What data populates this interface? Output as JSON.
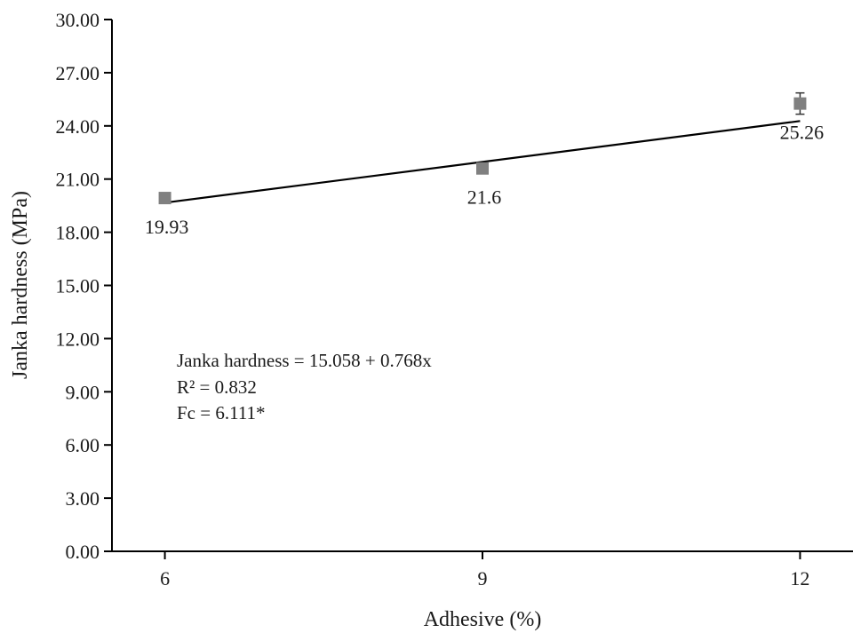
{
  "chart_data": {
    "type": "scatter",
    "xlabel": "Adhesive (%)",
    "ylabel": "Janka hardness (MPa)",
    "x": [
      6,
      9,
      12
    ],
    "series": [
      {
        "values": [
          19.93,
          21.6,
          25.26
        ],
        "error": [
          0.25,
          0.2,
          0.6
        ],
        "marker": "square",
        "color": "#808080"
      }
    ],
    "data_labels": [
      "19.93",
      "21.6",
      "25.26"
    ],
    "trendline": {
      "intercept": 15.058,
      "slope": 0.768,
      "color": "#000000"
    },
    "annotations": [
      "Janka hardness = 15.058 + 0.768x",
      "R² = 0.832",
      "Fc = 6.111*"
    ],
    "xlim": [
      5.5,
      12.5
    ],
    "ylim": [
      0,
      30
    ],
    "x_ticks": [
      "6",
      "9",
      "12"
    ],
    "y_ticks": [
      "0.00",
      "3.00",
      "6.00",
      "9.00",
      "12.00",
      "15.00",
      "18.00",
      "21.00",
      "24.00",
      "27.00",
      "30.00"
    ],
    "grid": false,
    "legend": "none"
  }
}
